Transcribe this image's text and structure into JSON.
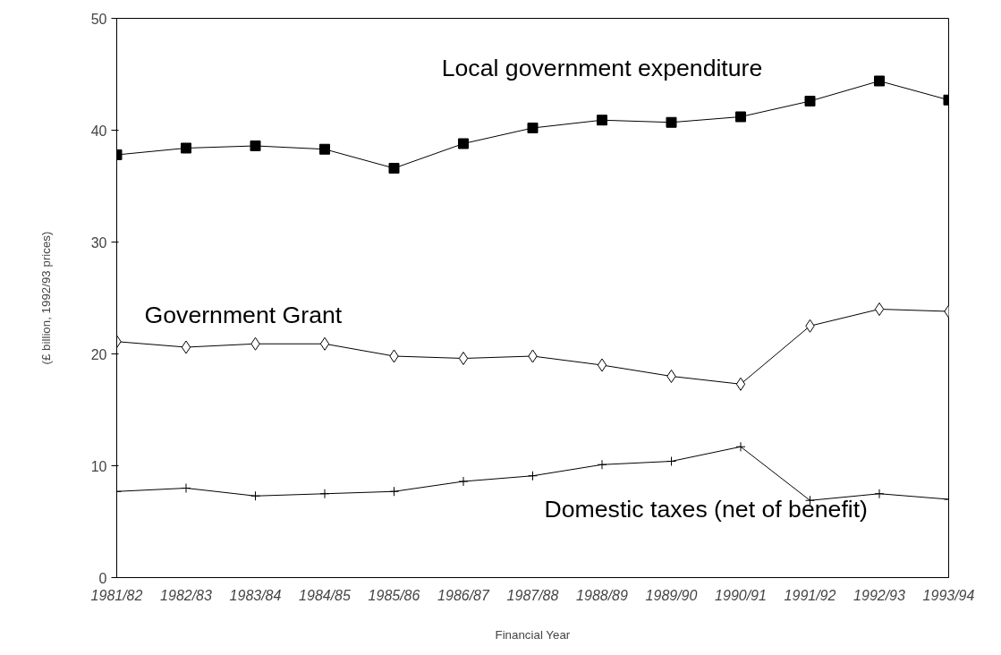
{
  "chart_data": {
    "type": "line",
    "xlabel": "Financial Year",
    "ylabel": "(£ billion, 1992/93 prices)",
    "categories": [
      "1981/82",
      "1982/83",
      "1983/84",
      "1984/85",
      "1985/86",
      "1986/87",
      "1987/88",
      "1988/89",
      "1989/90",
      "1990/91",
      "1991/92",
      "1992/93",
      "1993/94"
    ],
    "ylim": [
      0,
      50
    ],
    "yticks": [
      0,
      10,
      20,
      30,
      40,
      50
    ],
    "grid": false,
    "line_style": "solid",
    "series": [
      {
        "name": "Local government expenditure",
        "color": "#000000",
        "marker": "square",
        "values": [
          37.8,
          38.4,
          38.6,
          38.3,
          36.6,
          38.8,
          40.2,
          40.9,
          40.7,
          41.2,
          42.6,
          44.4,
          42.7
        ]
      },
      {
        "name": "Government Grant",
        "color": "#000000",
        "marker": "diamond",
        "values": [
          21.1,
          20.6,
          20.9,
          20.9,
          19.8,
          19.6,
          19.8,
          19.0,
          18.0,
          17.3,
          22.5,
          24.0,
          23.8
        ]
      },
      {
        "name": "Domestic taxes (net of benefit)",
        "color": "#000000",
        "marker": "cross",
        "values": [
          7.7,
          8.0,
          7.3,
          7.5,
          7.7,
          8.6,
          9.1,
          10.1,
          10.4,
          11.7,
          6.9,
          7.5,
          7.0
        ]
      }
    ]
  }
}
